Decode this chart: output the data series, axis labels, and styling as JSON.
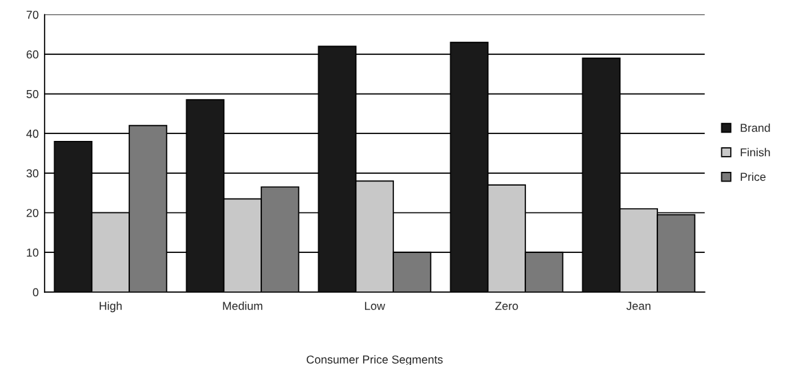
{
  "chart_data": {
    "type": "bar",
    "xlabel": "Consumer Price Segments",
    "categories": [
      "High",
      "Medium",
      "Low",
      "Zero",
      "Jean"
    ],
    "series": [
      {
        "name": "Brand",
        "color": "#1a1a1a",
        "values": [
          38,
          48.5,
          62,
          63,
          59
        ]
      },
      {
        "name": "Finish",
        "color": "#c8c8c8",
        "values": [
          20,
          23.5,
          28,
          27,
          21
        ]
      },
      {
        "name": "Price",
        "color": "#7a7a7a",
        "values": [
          42,
          26.5,
          10,
          10,
          19.5
        ]
      }
    ],
    "ylim": [
      0,
      70
    ],
    "yticks": [
      0,
      10,
      20,
      30,
      40,
      50,
      60,
      70
    ],
    "grid": "y",
    "legend": "right"
  }
}
